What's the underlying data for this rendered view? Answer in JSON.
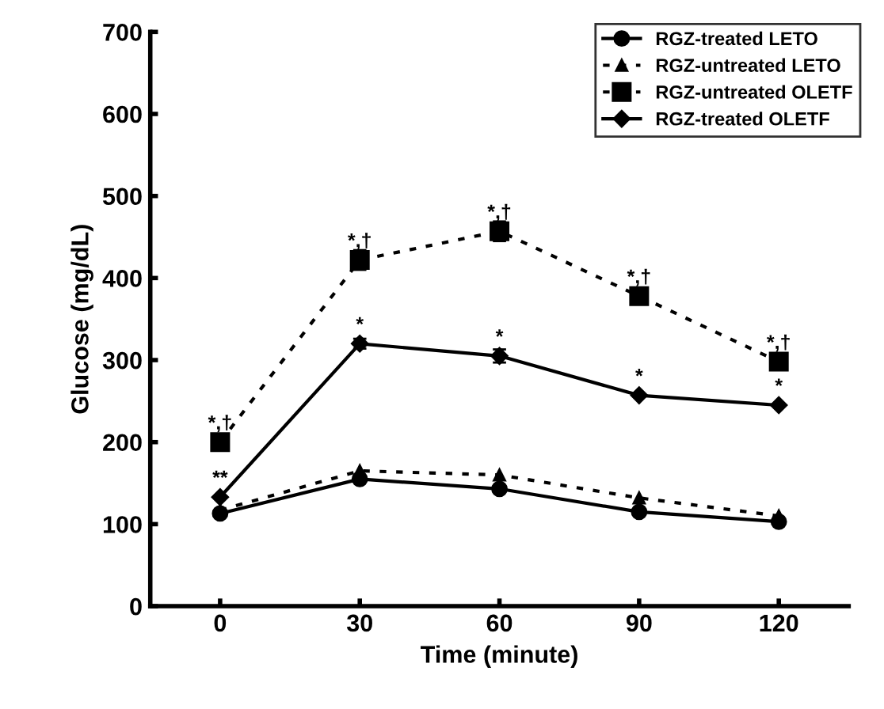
{
  "chart_data": {
    "type": "line",
    "xlabel": "Time (minute)",
    "ylabel": "Glucose (mg/dL)",
    "x": [
      0,
      30,
      60,
      90,
      120
    ],
    "xlim": [
      -15,
      135
    ],
    "xticks": [
      0,
      30,
      60,
      90,
      120
    ],
    "ylim": [
      0,
      700
    ],
    "yticks": [
      0,
      100,
      200,
      300,
      400,
      500,
      600,
      700
    ],
    "grid": false,
    "legend": "top right",
    "series": [
      {
        "name": "RGZ-treated LETO",
        "color": "#000000",
        "marker": "circle",
        "line_style": "solid",
        "values": [
          113,
          155,
          143,
          115,
          103
        ]
      },
      {
        "name": "RGZ-untreated LETO",
        "color": "#000000",
        "marker": "triangle",
        "line_style": "dashed",
        "values": [
          117,
          165,
          160,
          132,
          110
        ]
      },
      {
        "name": "RGZ-untreated OLETF",
        "color": "#000000",
        "marker": "square",
        "line_style": "dashed",
        "values": [
          200,
          422,
          457,
          378,
          298
        ],
        "errors": [
          null,
          12,
          12,
          8,
          null
        ]
      },
      {
        "name": "RGZ-treated OLETF",
        "color": "#000000",
        "marker": "diamond",
        "line_style": "solid",
        "values": [
          133,
          320,
          305,
          257,
          245
        ],
        "errors": [
          null,
          6,
          8,
          null,
          null
        ]
      }
    ],
    "annotations": [
      {
        "text": "*,†",
        "x": 0,
        "y": 200
      },
      {
        "text": "**",
        "x": 0,
        "y": 133
      },
      {
        "text": "*,†",
        "x": 30,
        "y": 422
      },
      {
        "text": "*",
        "x": 30,
        "y": 320
      },
      {
        "text": "*,†",
        "x": 60,
        "y": 457
      },
      {
        "text": "*",
        "x": 60,
        "y": 305
      },
      {
        "text": "*,†",
        "x": 90,
        "y": 378
      },
      {
        "text": "*",
        "x": 90,
        "y": 257
      },
      {
        "text": "*,†",
        "x": 120,
        "y": 298
      },
      {
        "text": "*",
        "x": 120,
        "y": 245
      }
    ]
  }
}
